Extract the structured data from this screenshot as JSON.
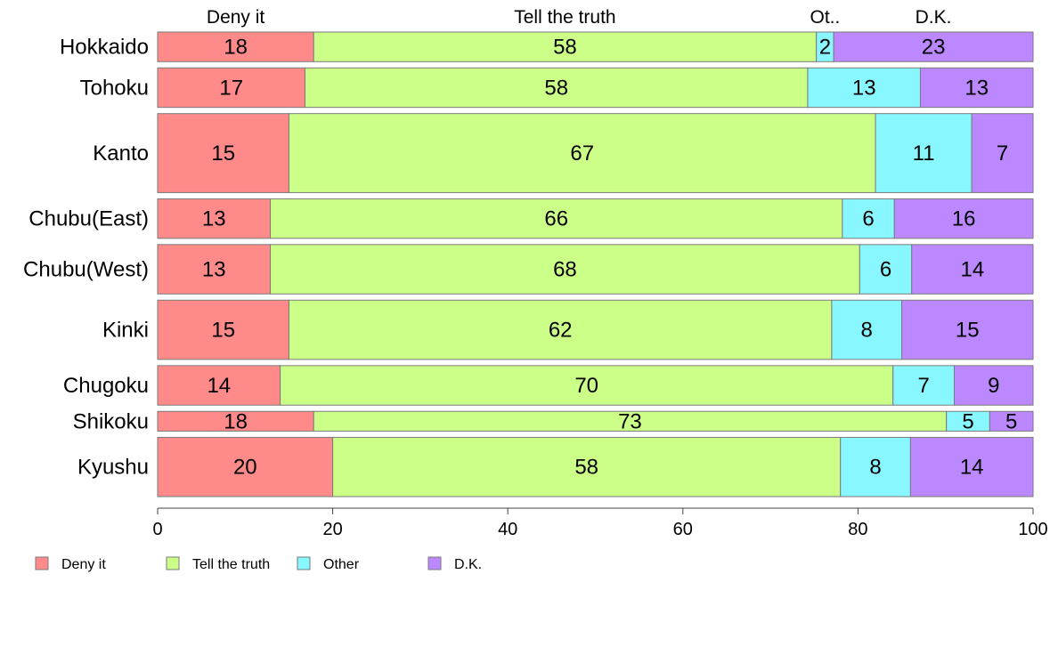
{
  "chart_data": {
    "type": "bar",
    "orientation": "horizontal",
    "stacked": true,
    "percent": true,
    "variable_width": true,
    "categories": [
      "Hokkaido",
      "Tohoku",
      "Kanto",
      "Chubu(East)",
      "Chubu(West)",
      "Kinki",
      "Chugoku",
      "Shikoku",
      "Kyushu"
    ],
    "series": [
      {
        "name": "Deny it",
        "color": "#ff8a8a",
        "values": [
          18,
          17,
          15,
          13,
          13,
          15,
          14,
          18,
          20
        ]
      },
      {
        "name": "Tell the truth",
        "color": "#ccff88",
        "values": [
          58,
          58,
          67,
          66,
          68,
          62,
          70,
          73,
          58
        ]
      },
      {
        "name": "Other",
        "color": "#88f7ff",
        "values": [
          2,
          13,
          11,
          6,
          6,
          8,
          7,
          5,
          8
        ]
      },
      {
        "name": "D.K.",
        "color": "#bb88ff",
        "values": [
          23,
          13,
          7,
          16,
          14,
          15,
          9,
          5,
          14
        ]
      }
    ],
    "group_weights": [
      3,
      4,
      8,
      4,
      5,
      6,
      4,
      2,
      6
    ],
    "column_headers": [
      "Deny it",
      "Tell the truth",
      "Ot..",
      "D.K."
    ],
    "xlim": [
      0,
      100
    ],
    "xticks": [
      0,
      20,
      40,
      60,
      80,
      100
    ],
    "legend": {
      "position": "bottom-left",
      "entries": [
        "Deny it",
        "Tell the truth",
        "Other",
        "D.K."
      ]
    },
    "grid": false,
    "title": "",
    "xlabel": "",
    "ylabel": ""
  }
}
